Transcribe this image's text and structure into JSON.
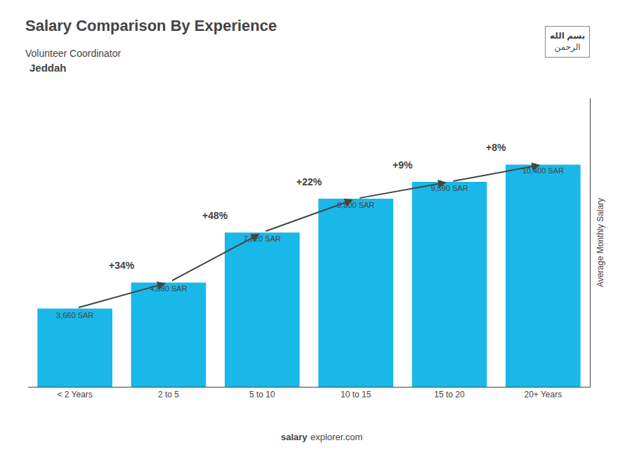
{
  "chart_data": {
    "type": "bar",
    "title": "Salary Comparison By Experience",
    "subtitle": "Volunteer Coordinator",
    "city": "Jeddah",
    "categories": [
      "< 2 Years",
      "2 to 5",
      "5 to 10",
      "10 to 15",
      "15 to 20",
      "20+ Years"
    ],
    "values": [
      3660,
      4880,
      7220,
      8800,
      9590,
      10400
    ],
    "value_labels": [
      "3,660 SAR",
      "4,880 SAR",
      "7,220 SAR",
      "8,800 SAR",
      "9,590 SAR",
      "10,400 SAR"
    ],
    "data_labels": true,
    "change_labels": [
      null,
      "+34%",
      "+48%",
      "+22%",
      "+9%",
      "+8%"
    ],
    "ylabel": "Average Monthly Salary",
    "ylim": [
      0,
      13500
    ],
    "tick_labels": "x",
    "grid": false,
    "color": "#1ab8e8",
    "footer": [
      "salary",
      "explorer.com"
    ],
    "flag_text": [
      "بسم الله",
      "الرحمن"
    ]
  }
}
